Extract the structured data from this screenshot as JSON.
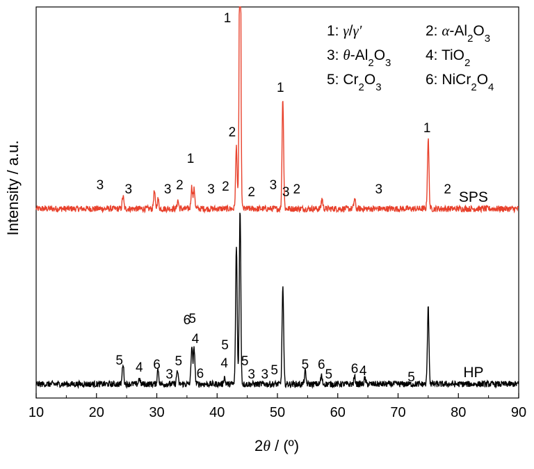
{
  "chart_data": {
    "type": "line",
    "xlabel_prefix": "2",
    "xlabel_symbol": "θ",
    "xlabel_suffix": " / (º)",
    "ylabel": "Intensity / a.u.",
    "xlim": [
      10,
      90
    ],
    "x_ticks": [
      10,
      20,
      30,
      40,
      50,
      60,
      70,
      80,
      90
    ],
    "y_ticks_visible": false,
    "grid": false,
    "series": [
      {
        "name": "SPS",
        "color": "#e8412c",
        "baseline": 300,
        "peaks": [
          {
            "x": 24.4,
            "h": 18
          },
          {
            "x": 29.6,
            "h": 25
          },
          {
            "x": 30.2,
            "h": 14
          },
          {
            "x": 33.5,
            "h": 12
          },
          {
            "x": 35.8,
            "h": 32
          },
          {
            "x": 36.2,
            "h": 28
          },
          {
            "x": 43.2,
            "h": 90
          },
          {
            "x": 43.8,
            "h": 520
          },
          {
            "x": 50.9,
            "h": 160
          },
          {
            "x": 57.4,
            "h": 15
          },
          {
            "x": 62.8,
            "h": 14
          },
          {
            "x": 75.0,
            "h": 100
          }
        ],
        "labels": [
          {
            "x": 20.6,
            "text": "3",
            "h": 22
          },
          {
            "x": 25.3,
            "text": "3",
            "h": 16
          },
          {
            "x": 31.8,
            "text": "3",
            "h": 16
          },
          {
            "x": 33.8,
            "text": "2",
            "h": 22
          },
          {
            "x": 35.6,
            "text": "1",
            "h": 60
          },
          {
            "x": 39.0,
            "text": "3",
            "h": 16
          },
          {
            "x": 41.4,
            "text": "2",
            "h": 20
          },
          {
            "x": 42.5,
            "text": "2",
            "h": 98
          },
          {
            "x": 41.7,
            "text": "1",
            "h": 262
          },
          {
            "x": 45.7,
            "text": "2",
            "h": 12
          },
          {
            "x": 49.3,
            "text": "3",
            "h": 22
          },
          {
            "x": 51.4,
            "text": "3",
            "h": 12
          },
          {
            "x": 53.2,
            "text": "2",
            "h": 16
          },
          {
            "x": 50.5,
            "text": "1",
            "h": 162
          },
          {
            "x": 66.8,
            "text": "3",
            "h": 16
          },
          {
            "x": 74.8,
            "text": "1",
            "h": 104
          },
          {
            "x": 78.2,
            "text": "2",
            "h": 16
          }
        ],
        "series_label": "SPS",
        "series_label_x": 82.5
      },
      {
        "name": "HP",
        "color": "#000000",
        "baseline": 552,
        "peaks": [
          {
            "x": 24.4,
            "h": 30
          },
          {
            "x": 27.1,
            "h": 8
          },
          {
            "x": 30.2,
            "h": 22
          },
          {
            "x": 33.4,
            "h": 20
          },
          {
            "x": 35.8,
            "h": 55
          },
          {
            "x": 36.2,
            "h": 52
          },
          {
            "x": 41.2,
            "h": 10
          },
          {
            "x": 43.2,
            "h": 200
          },
          {
            "x": 43.8,
            "h": 250
          },
          {
            "x": 50.9,
            "h": 140
          },
          {
            "x": 54.6,
            "h": 18
          },
          {
            "x": 57.3,
            "h": 12
          },
          {
            "x": 62.8,
            "h": 10
          },
          {
            "x": 64.5,
            "h": 8
          },
          {
            "x": 75.0,
            "h": 110
          }
        ],
        "labels": [
          {
            "x": 23.8,
            "text": "5",
            "h": 22
          },
          {
            "x": 27.1,
            "text": "4",
            "h": 12
          },
          {
            "x": 30.0,
            "text": "6",
            "h": 16
          },
          {
            "x": 32.1,
            "text": "3",
            "h": 2
          },
          {
            "x": 33.6,
            "text": "5",
            "h": 21
          },
          {
            "x": 35.0,
            "text": "6",
            "h": 80
          },
          {
            "x": 35.9,
            "text": "5",
            "h": 82
          },
          {
            "x": 36.4,
            "text": "4",
            "h": 53
          },
          {
            "x": 37.2,
            "text": "6",
            "h": 3
          },
          {
            "x": 41.2,
            "text": "4",
            "h": 18
          },
          {
            "x": 41.3,
            "text": "5",
            "h": 44
          },
          {
            "x": 44.6,
            "text": "5",
            "h": 21
          },
          {
            "x": 45.7,
            "text": "3",
            "h": 2
          },
          {
            "x": 47.9,
            "text": "3",
            "h": 2
          },
          {
            "x": 49.5,
            "text": "5",
            "h": 8
          },
          {
            "x": 54.6,
            "text": "5",
            "h": 16
          },
          {
            "x": 57.3,
            "text": "6",
            "h": 16
          },
          {
            "x": 58.5,
            "text": "5",
            "h": 2
          },
          {
            "x": 62.8,
            "text": "6",
            "h": 10
          },
          {
            "x": 64.2,
            "text": "4",
            "h": 7
          },
          {
            "x": 72.2,
            "text": "5",
            "h": -2
          }
        ],
        "series_label": "HP",
        "series_label_x": 82.5
      }
    ],
    "legend": [
      {
        "num": "1:",
        "html": "<tspan font-style='italic' font-family='Liberation Serif, serif'>γ</tspan>/<tspan font-style='italic' font-family='Liberation Serif, serif'>γ′</tspan>"
      },
      {
        "num": "2:",
        "html": "<tspan font-style='italic' font-family='Liberation Serif, serif'>α</tspan>-Al<tspan baseline-shift='sub' font-size='15'>2</tspan>O<tspan baseline-shift='sub' font-size='15'>3</tspan>"
      },
      {
        "num": "3:",
        "html": "<tspan font-style='italic' font-family='Liberation Serif, serif'>θ</tspan>-Al<tspan baseline-shift='sub' font-size='15'>2</tspan>O<tspan baseline-shift='sub' font-size='15'>3</tspan>"
      },
      {
        "num": "4:",
        "html": "TiO<tspan baseline-shift='sub' font-size='15'>2</tspan>"
      },
      {
        "num": "5:",
        "html": "Cr<tspan baseline-shift='sub' font-size='15'>2</tspan>O<tspan baseline-shift='sub' font-size='15'>3</tspan>"
      },
      {
        "num": "6:",
        "html": "NiCr<tspan baseline-shift='sub' font-size='15'>2</tspan>O<tspan baseline-shift='sub' font-size='15'>4</tspan>"
      }
    ],
    "legend_placement": "top-right"
  }
}
